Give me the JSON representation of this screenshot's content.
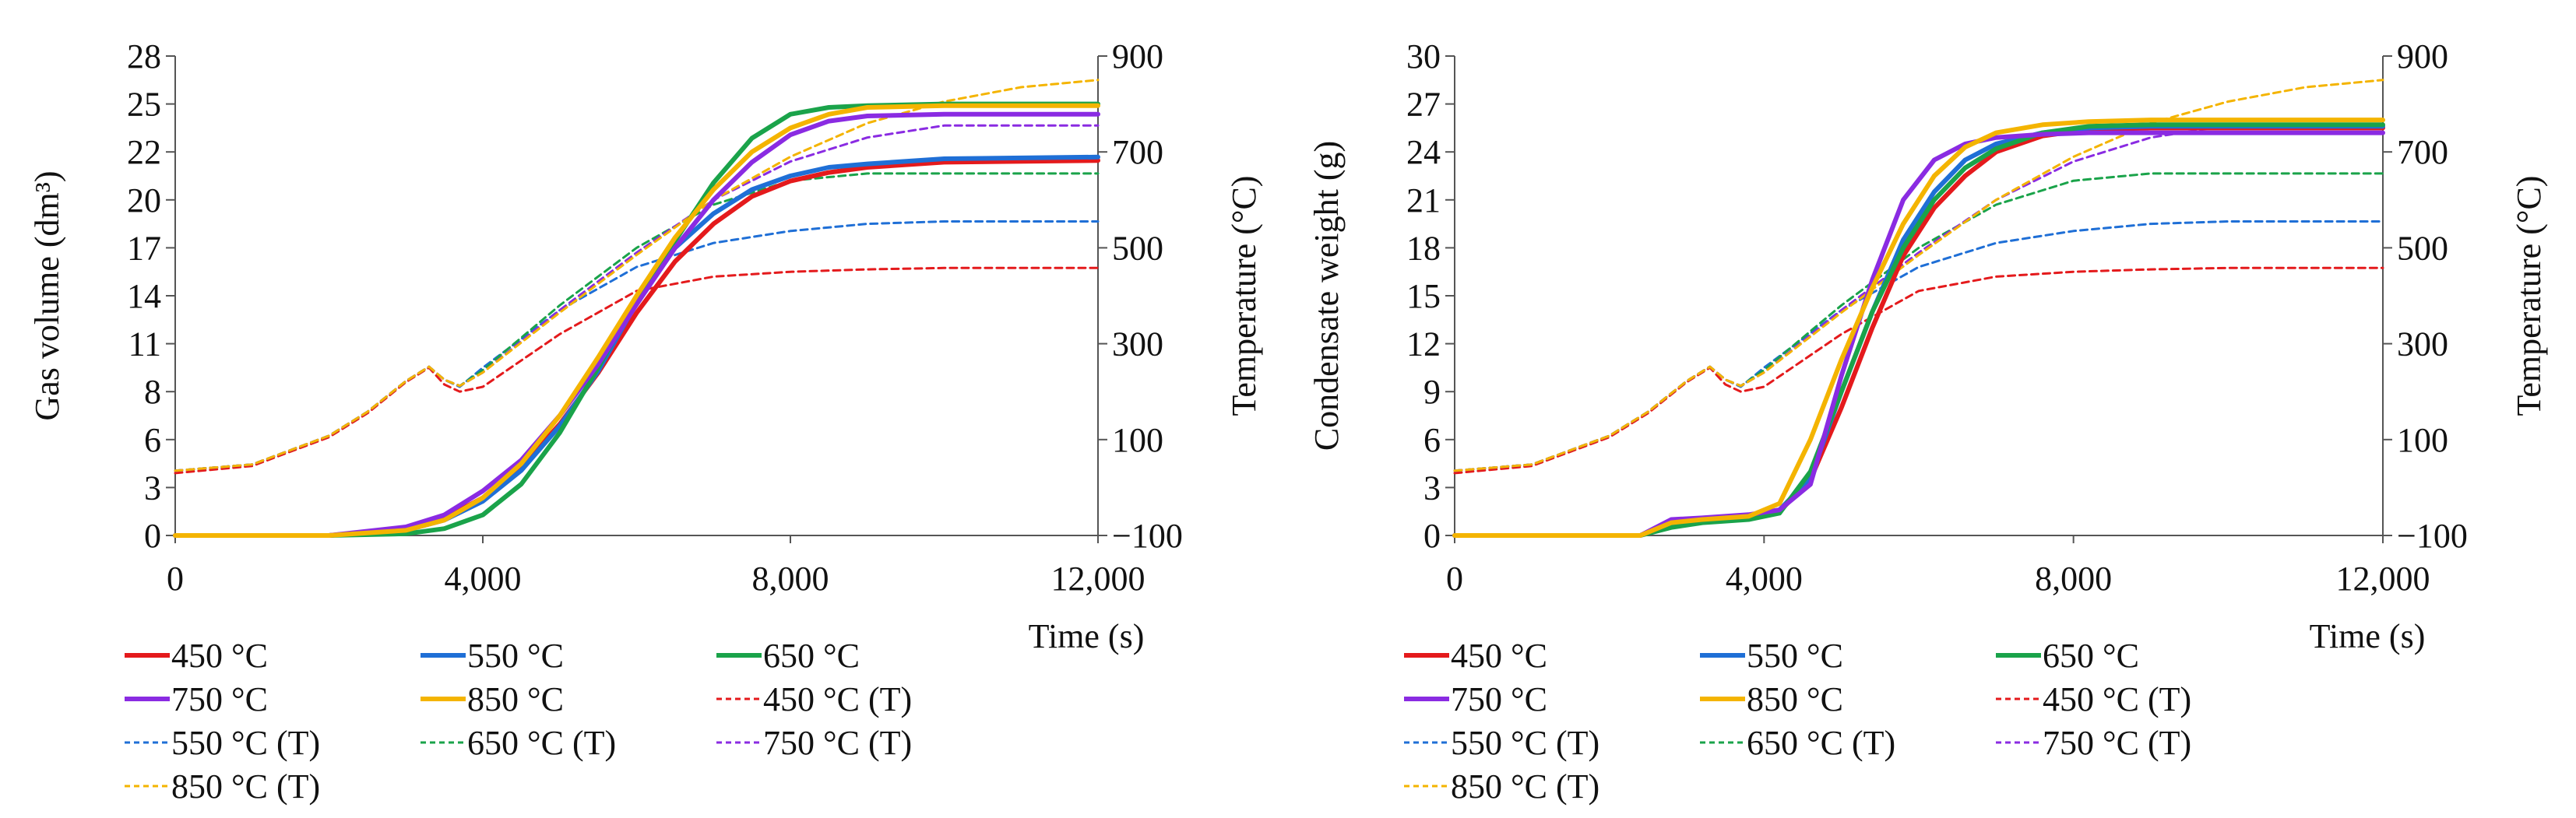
{
  "chart_data": [
    {
      "type": "line",
      "title": "",
      "xlabel": "Time (s)",
      "ylabel_left": "Gas volume (dm³)",
      "ylabel_right": "Temperature (°C)",
      "xlim": [
        0,
        12000
      ],
      "ylim_left": [
        0,
        28
      ],
      "ylim_right": [
        -100,
        900
      ],
      "xticks": [
        "0",
        "4,000",
        "8,000",
        "12,000"
      ],
      "xtick_values": [
        0,
        4000,
        8000,
        12000
      ],
      "yticks_left": [
        "0",
        "3",
        "6",
        "8",
        "11",
        "14",
        "17",
        "20",
        "22",
        "25",
        "28"
      ],
      "ytick_values_left": [
        0,
        2.8,
        5.6,
        8.4,
        11.2,
        14,
        16.8,
        19.6,
        22.4,
        25.2,
        28
      ],
      "yticks_right": [
        "−100",
        "100",
        "300",
        "500",
        "700",
        "900"
      ],
      "ytick_values_right": [
        -100,
        100,
        300,
        500,
        700,
        900
      ],
      "legend_position": "below",
      "series": [
        {
          "name": "450 °C",
          "axis": "left",
          "style": "solid",
          "color": "#e41a1c",
          "x": [
            0,
            2000,
            3000,
            3500,
            4000,
            4500,
            5000,
            5500,
            6000,
            6500,
            7000,
            7500,
            8000,
            8500,
            9000,
            10000,
            12000
          ],
          "y": [
            0,
            0,
            0.4,
            1,
            2.2,
            4,
            6.5,
            9.5,
            13,
            16,
            18.2,
            19.8,
            20.7,
            21.2,
            21.5,
            21.8,
            21.9
          ]
        },
        {
          "name": "550 °C",
          "axis": "left",
          "style": "solid",
          "color": "#1f6fd6",
          "x": [
            0,
            2000,
            3000,
            3500,
            4000,
            4500,
            5000,
            5500,
            6000,
            6500,
            7000,
            7500,
            8000,
            8500,
            9000,
            10000,
            12000
          ],
          "y": [
            0,
            0,
            0.3,
            0.9,
            2,
            3.8,
            6.4,
            9.6,
            13.6,
            16.8,
            18.8,
            20.2,
            21,
            21.5,
            21.7,
            22,
            22.1
          ]
        },
        {
          "name": "650 °C",
          "axis": "left",
          "style": "solid",
          "color": "#1aa34a",
          "x": [
            0,
            2000,
            3000,
            3500,
            4000,
            4500,
            5000,
            5500,
            6000,
            6500,
            7000,
            7500,
            8000,
            8500,
            9000,
            10000,
            12000
          ],
          "y": [
            0,
            0,
            0.1,
            0.4,
            1.2,
            3,
            6,
            9.8,
            13.8,
            17.2,
            20.6,
            23.2,
            24.6,
            25,
            25.1,
            25.2,
            25.2
          ]
        },
        {
          "name": "750 °C",
          "axis": "left",
          "style": "solid",
          "color": "#8a2be2",
          "x": [
            0,
            2000,
            3000,
            3500,
            4000,
            4500,
            5000,
            5500,
            6000,
            6500,
            7000,
            7500,
            8000,
            8500,
            9000,
            10000,
            12000
          ],
          "y": [
            0,
            0,
            0.5,
            1.2,
            2.6,
            4.4,
            7,
            10,
            13.5,
            16.8,
            19.6,
            21.8,
            23.4,
            24.2,
            24.5,
            24.6,
            24.6
          ]
        },
        {
          "name": "850 °C",
          "axis": "left",
          "style": "solid",
          "color": "#f4b400",
          "x": [
            0,
            2000,
            3000,
            3500,
            4000,
            4500,
            5000,
            5500,
            6000,
            6500,
            7000,
            7500,
            8000,
            8500,
            9000,
            10000,
            12000
          ],
          "y": [
            0,
            0,
            0.3,
            0.9,
            2.2,
            4.2,
            7,
            10.4,
            14,
            17.4,
            20.2,
            22.4,
            23.8,
            24.6,
            25,
            25.1,
            25.1
          ]
        },
        {
          "name": "450 °C (T)",
          "axis": "right",
          "style": "dashed",
          "color": "#e41a1c",
          "x": [
            0,
            1000,
            2000,
            2500,
            3000,
            3300,
            3500,
            3700,
            4000,
            5000,
            6000,
            7000,
            8000,
            9000,
            10000,
            12000
          ],
          "y": [
            30,
            45,
            105,
            155,
            220,
            250,
            215,
            200,
            210,
            320,
            410,
            440,
            450,
            455,
            458,
            458
          ]
        },
        {
          "name": "550 °C (T)",
          "axis": "right",
          "style": "dashed",
          "color": "#1f6fd6",
          "x": [
            0,
            1000,
            2000,
            2500,
            3000,
            3300,
            3500,
            3700,
            4000,
            5000,
            6000,
            7000,
            8000,
            9000,
            10000,
            12000
          ],
          "y": [
            35,
            48,
            108,
            158,
            222,
            252,
            225,
            210,
            250,
            370,
            460,
            510,
            535,
            550,
            555,
            555
          ]
        },
        {
          "name": "650 °C (T)",
          "axis": "right",
          "style": "dashed",
          "color": "#1aa34a",
          "x": [
            0,
            1000,
            2000,
            2500,
            3000,
            3300,
            3500,
            3700,
            4000,
            5000,
            6000,
            7000,
            8000,
            9000,
            10000,
            12000
          ],
          "y": [
            35,
            48,
            108,
            158,
            222,
            252,
            225,
            212,
            245,
            380,
            500,
            590,
            640,
            655,
            655,
            655
          ]
        },
        {
          "name": "750 °C (T)",
          "axis": "right",
          "style": "dashed",
          "color": "#8a2be2",
          "x": [
            0,
            1000,
            2000,
            2500,
            3000,
            3300,
            3500,
            3700,
            4000,
            5000,
            6000,
            7000,
            8000,
            9000,
            10000,
            12000
          ],
          "y": [
            35,
            48,
            108,
            158,
            222,
            252,
            225,
            212,
            240,
            370,
            490,
            600,
            680,
            730,
            755,
            755
          ]
        },
        {
          "name": "850 °C (T)",
          "axis": "right",
          "style": "dashed",
          "color": "#f4b400",
          "x": [
            0,
            1000,
            2000,
            2500,
            3000,
            3300,
            3500,
            3700,
            4000,
            5000,
            6000,
            7000,
            8000,
            9000,
            10000,
            11000,
            12000
          ],
          "y": [
            35,
            48,
            108,
            158,
            222,
            252,
            225,
            212,
            240,
            365,
            485,
            600,
            690,
            760,
            805,
            835,
            850
          ]
        }
      ]
    },
    {
      "type": "line",
      "title": "",
      "xlabel": "Time (s)",
      "ylabel_left": "Condensate weight (g)",
      "ylabel_right": "Temperature (°C)",
      "xlim": [
        0,
        12000
      ],
      "ylim_left": [
        0,
        30
      ],
      "ylim_right": [
        -100,
        900
      ],
      "xticks": [
        "0",
        "4,000",
        "8,000",
        "12,000"
      ],
      "xtick_values": [
        0,
        4000,
        8000,
        12000
      ],
      "yticks_left": [
        "0",
        "3",
        "6",
        "9",
        "12",
        "15",
        "18",
        "21",
        "24",
        "27",
        "30"
      ],
      "ytick_values_left": [
        0,
        3,
        6,
        9,
        12,
        15,
        18,
        21,
        24,
        27,
        30
      ],
      "yticks_right": [
        "−100",
        "100",
        "300",
        "500",
        "700",
        "900"
      ],
      "ytick_values_right": [
        -100,
        100,
        300,
        500,
        700,
        900
      ],
      "legend_position": "below",
      "series": [
        {
          "name": "450 °C",
          "axis": "left",
          "style": "solid",
          "color": "#e41a1c",
          "x": [
            0,
            2400,
            2800,
            3200,
            3800,
            4200,
            4600,
            5000,
            5400,
            5800,
            6200,
            6600,
            7000,
            7600,
            8200,
            9000,
            12000
          ],
          "y": [
            0,
            0,
            0.8,
            1,
            1.2,
            1.5,
            3.5,
            8,
            13,
            17.5,
            20.5,
            22.5,
            24,
            25,
            25.4,
            25.5,
            25.5
          ]
        },
        {
          "name": "550 °C",
          "axis": "left",
          "style": "solid",
          "color": "#1f6fd6",
          "x": [
            0,
            2400,
            2800,
            3200,
            3800,
            4200,
            4600,
            5000,
            5400,
            5800,
            6200,
            6600,
            7000,
            7600,
            8200,
            9000,
            12000
          ],
          "y": [
            0,
            0,
            0.7,
            1,
            1.2,
            1.6,
            3.6,
            9,
            14,
            18.5,
            21.5,
            23.5,
            24.5,
            25.2,
            25.5,
            25.6,
            25.6
          ]
        },
        {
          "name": "650 °C",
          "axis": "left",
          "style": "solid",
          "color": "#1aa34a",
          "x": [
            0,
            2400,
            2800,
            3200,
            3800,
            4200,
            4600,
            5000,
            5400,
            5800,
            6200,
            6600,
            7000,
            7600,
            8200,
            9000,
            12000
          ],
          "y": [
            0,
            0,
            0.5,
            0.8,
            1,
            1.4,
            4,
            9,
            14,
            18,
            21,
            23,
            24.2,
            25.2,
            25.6,
            25.7,
            25.7
          ]
        },
        {
          "name": "750 °C",
          "axis": "left",
          "style": "solid",
          "color": "#8a2be2",
          "x": [
            0,
            2400,
            2800,
            3200,
            3800,
            4200,
            4600,
            5000,
            5400,
            5800,
            6200,
            6600,
            7000,
            7600,
            8200,
            9000,
            12000
          ],
          "y": [
            0,
            0,
            1,
            1.1,
            1.3,
            1.6,
            3.2,
            10,
            16,
            21,
            23.5,
            24.5,
            24.9,
            25.1,
            25.2,
            25.2,
            25.2
          ]
        },
        {
          "name": "850 °C",
          "axis": "left",
          "style": "solid",
          "color": "#f4b400",
          "x": [
            0,
            2400,
            2800,
            3200,
            3800,
            4200,
            4600,
            5000,
            5400,
            5800,
            6200,
            6600,
            7000,
            7600,
            8200,
            9000,
            12000
          ],
          "y": [
            0,
            0,
            0.8,
            1,
            1.2,
            2,
            6,
            11,
            15.5,
            19.5,
            22.5,
            24.3,
            25.2,
            25.7,
            25.9,
            26,
            26
          ]
        },
        {
          "name": "450 °C (T)",
          "axis": "right",
          "style": "dashed",
          "color": "#e41a1c",
          "x": [
            0,
            1000,
            2000,
            2500,
            3000,
            3300,
            3500,
            3700,
            4000,
            5000,
            6000,
            7000,
            8000,
            9000,
            10000,
            12000
          ],
          "y": [
            30,
            45,
            105,
            155,
            220,
            250,
            215,
            200,
            210,
            320,
            410,
            440,
            450,
            455,
            458,
            458
          ]
        },
        {
          "name": "550 °C (T)",
          "axis": "right",
          "style": "dashed",
          "color": "#1f6fd6",
          "x": [
            0,
            1000,
            2000,
            2500,
            3000,
            3300,
            3500,
            3700,
            4000,
            5000,
            6000,
            7000,
            8000,
            9000,
            10000,
            12000
          ],
          "y": [
            35,
            48,
            108,
            158,
            222,
            252,
            225,
            210,
            250,
            370,
            460,
            510,
            535,
            550,
            555,
            555
          ]
        },
        {
          "name": "650 °C (T)",
          "axis": "right",
          "style": "dashed",
          "color": "#1aa34a",
          "x": [
            0,
            1000,
            2000,
            2500,
            3000,
            3300,
            3500,
            3700,
            4000,
            5000,
            6000,
            7000,
            8000,
            9000,
            10000,
            12000
          ],
          "y": [
            35,
            48,
            108,
            158,
            222,
            252,
            225,
            212,
            245,
            380,
            500,
            590,
            640,
            655,
            655,
            655
          ]
        },
        {
          "name": "750 °C (T)",
          "axis": "right",
          "style": "dashed",
          "color": "#8a2be2",
          "x": [
            0,
            1000,
            2000,
            2500,
            3000,
            3300,
            3500,
            3700,
            4000,
            5000,
            6000,
            7000,
            8000,
            9000,
            10000,
            12000
          ],
          "y": [
            35,
            48,
            108,
            158,
            222,
            252,
            225,
            212,
            240,
            370,
            490,
            600,
            680,
            730,
            755,
            755
          ]
        },
        {
          "name": "850 °C (T)",
          "axis": "right",
          "style": "dashed",
          "color": "#f4b400",
          "x": [
            0,
            1000,
            2000,
            2500,
            3000,
            3300,
            3500,
            3700,
            4000,
            5000,
            6000,
            7000,
            8000,
            9000,
            10000,
            11000,
            12000
          ],
          "y": [
            35,
            48,
            108,
            158,
            222,
            252,
            225,
            212,
            240,
            365,
            485,
            600,
            690,
            760,
            805,
            835,
            850
          ]
        }
      ]
    }
  ]
}
